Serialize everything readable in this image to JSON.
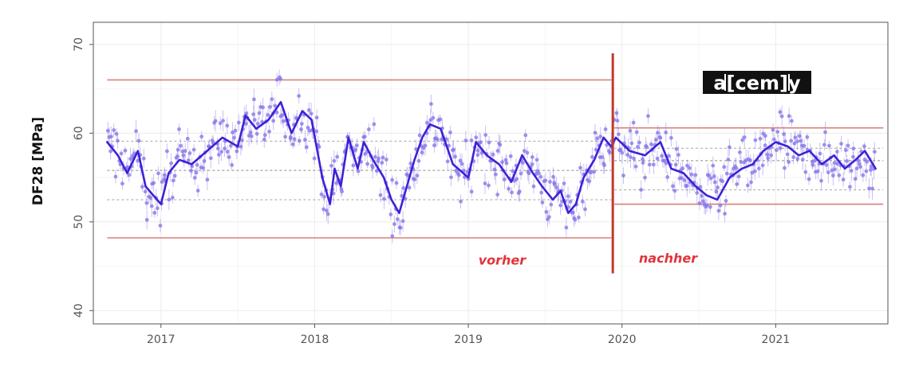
{
  "chart_data": {
    "type": "scatter",
    "ylabel": "DF28 [MPa]",
    "ylim": [
      38.5,
      72.5
    ],
    "xlim": [
      2016.56,
      2021.73
    ],
    "y_ticks": [
      40,
      50,
      60,
      70
    ],
    "x_ticks": [
      {
        "value": 2017.0,
        "label": "2017"
      },
      {
        "value": 2018.0,
        "label": "2018"
      },
      {
        "value": 2019.0,
        "label": "2019"
      },
      {
        "value": 2020.0,
        "label": "2020"
      },
      {
        "value": 2021.0,
        "label": "2021"
      }
    ],
    "grid": true,
    "point_color": "#8878e8",
    "line_color": "#3b22d6",
    "limit_color": "#d9807a",
    "split_color": "#c0392b",
    "split_x": 2019.94,
    "split_ylim": [
      44.2,
      69.0
    ],
    "annotations": [
      {
        "text": "vorher",
        "x": 2019.22,
        "y": 45.2
      },
      {
        "text": "nachher",
        "x": 2020.3,
        "y": 45.4
      }
    ],
    "limits_before": {
      "x": [
        2016.65,
        2019.93
      ],
      "upper": 66.0,
      "lower": 48.2,
      "mean": 55.8,
      "plus1sd": 59.1,
      "minus1sd": 52.5
    },
    "limits_after": {
      "x": [
        2019.95,
        2021.7
      ],
      "upper": 60.6,
      "lower": 52.0,
      "mean": 56.9,
      "plus1sd": 58.3,
      "minus1sd": 53.6
    },
    "trend": {
      "x": [
        2016.65,
        2016.72,
        2016.78,
        2016.85,
        2016.9,
        2016.95,
        2017.0,
        2017.05,
        2017.12,
        2017.2,
        2017.3,
        2017.4,
        2017.5,
        2017.55,
        2017.62,
        2017.7,
        2017.78,
        2017.85,
        2017.92,
        2017.98,
        2018.05,
        2018.1,
        2018.13,
        2018.17,
        2018.22,
        2018.28,
        2018.32,
        2018.38,
        2018.45,
        2018.5,
        2018.55,
        2018.6,
        2018.65,
        2018.7,
        2018.75,
        2018.82,
        2018.9,
        2019.0,
        2019.05,
        2019.12,
        2019.2,
        2019.28,
        2019.35,
        2019.42,
        2019.48,
        2019.55,
        2019.6,
        2019.65,
        2019.7,
        2019.75,
        2019.82,
        2019.88,
        2019.93,
        2019.96,
        2020.05,
        2020.15,
        2020.25,
        2020.32,
        2020.4,
        2020.48,
        2020.55,
        2020.62,
        2020.7,
        2020.78,
        2020.85,
        2020.92,
        2021.0,
        2021.08,
        2021.15,
        2021.22,
        2021.3,
        2021.38,
        2021.45,
        2021.52,
        2021.58,
        2021.65
      ],
      "y": [
        59.0,
        57.5,
        55.5,
        58.0,
        54.0,
        53.0,
        52.0,
        55.5,
        57.0,
        56.5,
        58.0,
        59.5,
        58.5,
        62.0,
        60.5,
        61.5,
        63.5,
        60.0,
        62.5,
        61.5,
        55.0,
        52.0,
        56.0,
        54.0,
        59.5,
        56.0,
        59.0,
        57.0,
        55.0,
        52.5,
        51.0,
        54.0,
        57.0,
        59.5,
        61.0,
        60.5,
        56.5,
        55.0,
        59.0,
        57.5,
        56.5,
        54.5,
        57.5,
        55.5,
        54.0,
        52.5,
        53.5,
        51.0,
        52.0,
        55.0,
        57.0,
        59.5,
        58.5,
        59.5,
        58.0,
        57.5,
        59.0,
        56.0,
        55.5,
        54.0,
        53.0,
        52.5,
        55.0,
        56.0,
        56.5,
        58.0,
        59.0,
        58.5,
        57.5,
        58.0,
        56.5,
        57.5,
        56.0,
        57.0,
        58.0,
        56.0
      ]
    },
    "logo": {
      "text": "a[cem]y"
    }
  }
}
